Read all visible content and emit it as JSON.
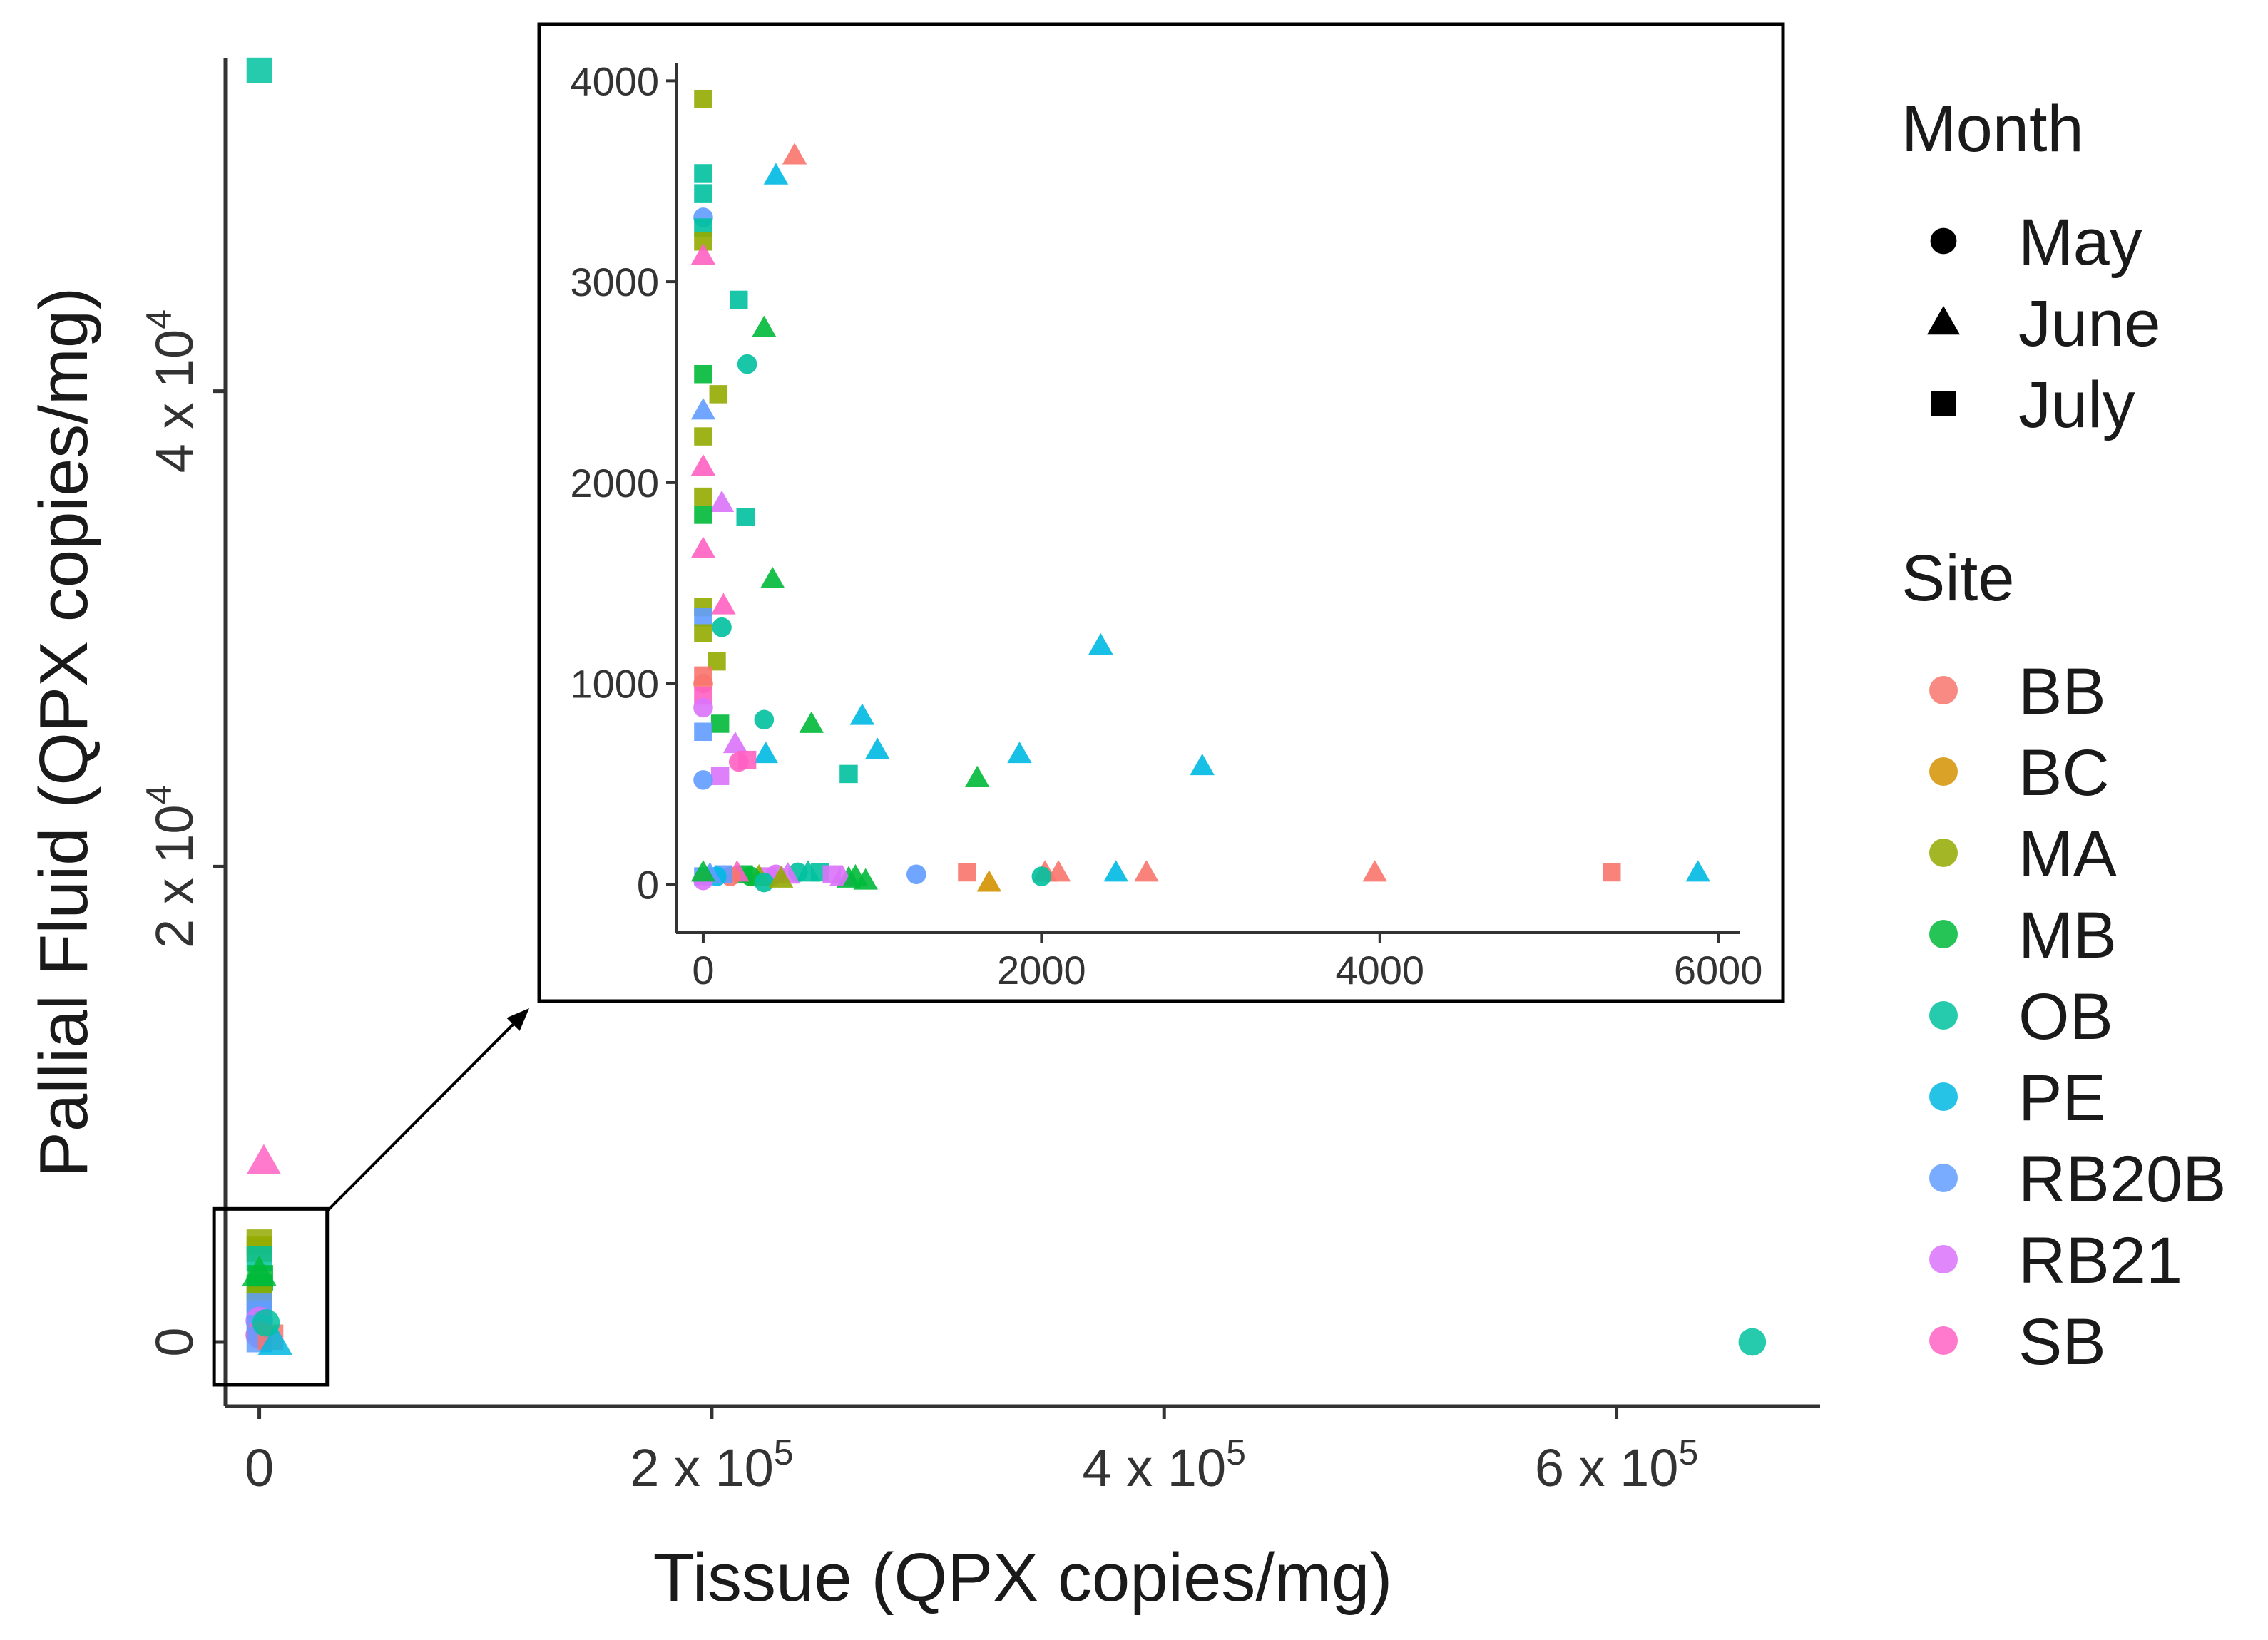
{
  "chart_data": [
    {
      "type": "scatter",
      "panel": "main",
      "xlabel": "Tissue (QPX copies/mg)",
      "ylabel": "Pallial Fluid (QPX copies/mg)",
      "xlim": [
        -15000,
        690000
      ],
      "ylim": [
        -2700,
        54000
      ],
      "x_ticks": [
        {
          "value": 0,
          "label": "0"
        },
        {
          "value": 200000,
          "label": "2 x 10",
          "sup": "5"
        },
        {
          "value": 400000,
          "label": "4 x 10",
          "sup": "5"
        },
        {
          "value": 600000,
          "label": "6 x 10",
          "sup": "5"
        }
      ],
      "y_ticks": [
        {
          "value": 0,
          "label": "0"
        },
        {
          "value": 20000,
          "label": "2 x 10",
          "sup": "4"
        },
        {
          "value": 40000,
          "label": "4 x 10",
          "sup": "4"
        }
      ],
      "points": [
        {
          "x": 0,
          "y": 53500,
          "month": "July",
          "site": "OB"
        },
        {
          "x": 2000,
          "y": 7600,
          "month": "June",
          "site": "SB"
        },
        {
          "x": 0,
          "y": 4200,
          "month": "July",
          "site": "MA"
        },
        {
          "x": 0,
          "y": 3900,
          "month": "July",
          "site": "MA"
        },
        {
          "x": 0,
          "y": 3500,
          "month": "July",
          "site": "OB"
        },
        {
          "x": 0,
          "y": 2900,
          "month": "June",
          "site": "MB"
        },
        {
          "x": 500,
          "y": 2700,
          "month": "July",
          "site": "MB"
        },
        {
          "x": 0,
          "y": 2300,
          "month": "July",
          "site": "MB"
        },
        {
          "x": 0,
          "y": 1800,
          "month": "July",
          "site": "MA"
        },
        {
          "x": 0,
          "y": 1500,
          "month": "July",
          "site": "RB20B"
        },
        {
          "x": 0,
          "y": 1200,
          "month": "July",
          "site": "RB20B"
        },
        {
          "x": 0,
          "y": 900,
          "month": "May",
          "site": "RB21"
        },
        {
          "x": 0,
          "y": 600,
          "month": "July",
          "site": "RB20B"
        },
        {
          "x": 0,
          "y": 300,
          "month": "May",
          "site": "SB"
        },
        {
          "x": 0,
          "y": 100,
          "month": "July",
          "site": "RB20B"
        },
        {
          "x": 5000,
          "y": 200,
          "month": "July",
          "site": "BB"
        },
        {
          "x": 7000,
          "y": 0,
          "month": "June",
          "site": "PE"
        },
        {
          "x": 3000,
          "y": 800,
          "month": "May",
          "site": "OB"
        },
        {
          "x": 660000,
          "y": 0,
          "month": "May",
          "site": "OB"
        }
      ],
      "zoom_box": {
        "x": [
          -20000,
          30000
        ],
        "y": [
          -1800,
          5600
        ]
      }
    },
    {
      "type": "scatter",
      "panel": "inset",
      "xlim": [
        -160,
        6130
      ],
      "ylim": [
        -240,
        4090
      ],
      "x_ticks": [
        {
          "value": 0,
          "label": "0"
        },
        {
          "value": 2000,
          "label": "2000"
        },
        {
          "value": 4000,
          "label": "4000"
        },
        {
          "value": 6000,
          "label": "6000"
        }
      ],
      "y_ticks": [
        {
          "value": 0,
          "label": "0"
        },
        {
          "value": 1000,
          "label": "1000"
        },
        {
          "value": 2000,
          "label": "2000"
        },
        {
          "value": 3000,
          "label": "3000"
        },
        {
          "value": 4000,
          "label": "4000"
        }
      ],
      "points": [
        {
          "x": 0,
          "y": 3910,
          "month": "July",
          "site": "MA"
        },
        {
          "x": 0,
          "y": 3540,
          "month": "July",
          "site": "OB"
        },
        {
          "x": 0,
          "y": 3440,
          "month": "July",
          "site": "OB"
        },
        {
          "x": 0,
          "y": 3320,
          "month": "May",
          "site": "RB20B"
        },
        {
          "x": 0,
          "y": 3270,
          "month": "July",
          "site": "OB"
        },
        {
          "x": 0,
          "y": 3200,
          "month": "July",
          "site": "MA"
        },
        {
          "x": 0,
          "y": 3130,
          "month": "June",
          "site": "SB"
        },
        {
          "x": 540,
          "y": 3630,
          "month": "June",
          "site": "BB"
        },
        {
          "x": 430,
          "y": 3530,
          "month": "June",
          "site": "PE"
        },
        {
          "x": 210,
          "y": 2910,
          "month": "July",
          "site": "OB"
        },
        {
          "x": 360,
          "y": 2770,
          "month": "June",
          "site": "MB"
        },
        {
          "x": 260,
          "y": 2590,
          "month": "May",
          "site": "OB"
        },
        {
          "x": 0,
          "y": 2540,
          "month": "July",
          "site": "MB"
        },
        {
          "x": 90,
          "y": 2440,
          "month": "July",
          "site": "MA"
        },
        {
          "x": 0,
          "y": 2360,
          "month": "June",
          "site": "RB20B"
        },
        {
          "x": 0,
          "y": 2230,
          "month": "July",
          "site": "MA"
        },
        {
          "x": 0,
          "y": 2080,
          "month": "June",
          "site": "SB"
        },
        {
          "x": 0,
          "y": 1930,
          "month": "July",
          "site": "MA"
        },
        {
          "x": 110,
          "y": 1900,
          "month": "June",
          "site": "RB21"
        },
        {
          "x": 0,
          "y": 1840,
          "month": "July",
          "site": "MB"
        },
        {
          "x": 250,
          "y": 1830,
          "month": "July",
          "site": "OB"
        },
        {
          "x": 0,
          "y": 1670,
          "month": "June",
          "site": "SB"
        },
        {
          "x": 410,
          "y": 1520,
          "month": "June",
          "site": "MB"
        },
        {
          "x": 0,
          "y": 1380,
          "month": "July",
          "site": "MA"
        },
        {
          "x": 120,
          "y": 1390,
          "month": "June",
          "site": "SB"
        },
        {
          "x": 0,
          "y": 1330,
          "month": "July",
          "site": "RB20B"
        },
        {
          "x": 110,
          "y": 1280,
          "month": "May",
          "site": "OB"
        },
        {
          "x": 0,
          "y": 1250,
          "month": "July",
          "site": "MA"
        },
        {
          "x": 2350,
          "y": 1190,
          "month": "June",
          "site": "PE"
        },
        {
          "x": 80,
          "y": 1110,
          "month": "July",
          "site": "MA"
        },
        {
          "x": 0,
          "y": 1040,
          "month": "July",
          "site": "BB"
        },
        {
          "x": 0,
          "y": 1000,
          "month": "May",
          "site": "BB"
        },
        {
          "x": 0,
          "y": 940,
          "month": "July",
          "site": "SB"
        },
        {
          "x": 0,
          "y": 880,
          "month": "May",
          "site": "RB21"
        },
        {
          "x": 940,
          "y": 840,
          "month": "June",
          "site": "PE"
        },
        {
          "x": 360,
          "y": 820,
          "month": "May",
          "site": "OB"
        },
        {
          "x": 640,
          "y": 800,
          "month": "June",
          "site": "MB"
        },
        {
          "x": 100,
          "y": 800,
          "month": "July",
          "site": "MB"
        },
        {
          "x": 0,
          "y": 760,
          "month": "July",
          "site": "RB20B"
        },
        {
          "x": 190,
          "y": 700,
          "month": "June",
          "site": "RB21"
        },
        {
          "x": 1030,
          "y": 670,
          "month": "June",
          "site": "PE"
        },
        {
          "x": 1870,
          "y": 650,
          "month": "June",
          "site": "PE"
        },
        {
          "x": 370,
          "y": 650,
          "month": "June",
          "site": "PE"
        },
        {
          "x": 260,
          "y": 620,
          "month": "July",
          "site": "SB"
        },
        {
          "x": 210,
          "y": 610,
          "month": "May",
          "site": "SB"
        },
        {
          "x": 2950,
          "y": 590,
          "month": "June",
          "site": "PE"
        },
        {
          "x": 860,
          "y": 550,
          "month": "July",
          "site": "OB"
        },
        {
          "x": 1620,
          "y": 530,
          "month": "June",
          "site": "MB"
        },
        {
          "x": 100,
          "y": 540,
          "month": "July",
          "site": "RB21"
        },
        {
          "x": 0,
          "y": 520,
          "month": "May",
          "site": "RB20B"
        },
        {
          "x": 1560,
          "y": 60,
          "month": "July",
          "site": "BB"
        },
        {
          "x": 5370,
          "y": 60,
          "month": "July",
          "site": "BB"
        },
        {
          "x": 3970,
          "y": 60,
          "month": "June",
          "site": "BB"
        },
        {
          "x": 2620,
          "y": 60,
          "month": "June",
          "site": "BB"
        },
        {
          "x": 2020,
          "y": 60,
          "month": "June",
          "site": "BB"
        },
        {
          "x": 2100,
          "y": 60,
          "month": "June",
          "site": "BB"
        },
        {
          "x": 2440,
          "y": 60,
          "month": "June",
          "site": "PE"
        },
        {
          "x": 5880,
          "y": 60,
          "month": "June",
          "site": "PE"
        },
        {
          "x": 1260,
          "y": 50,
          "month": "May",
          "site": "RB20B"
        },
        {
          "x": 2000,
          "y": 40,
          "month": "May",
          "site": "OB"
        },
        {
          "x": 1690,
          "y": 10,
          "month": "June",
          "site": "BC"
        },
        {
          "x": 960,
          "y": 20,
          "month": "June",
          "site": "MB"
        },
        {
          "x": 860,
          "y": 30,
          "month": "June",
          "site": "MB"
        },
        {
          "x": 690,
          "y": 60,
          "month": "July",
          "site": "OB"
        },
        {
          "x": 620,
          "y": 60,
          "month": "June",
          "site": "OB"
        },
        {
          "x": 560,
          "y": 60,
          "month": "May",
          "site": "OB"
        },
        {
          "x": 500,
          "y": 50,
          "month": "June",
          "site": "RB21"
        },
        {
          "x": 430,
          "y": 50,
          "month": "May",
          "site": "RB21"
        },
        {
          "x": 380,
          "y": 40,
          "month": "July",
          "site": "RB21"
        },
        {
          "x": 330,
          "y": 40,
          "month": "June",
          "site": "MA"
        },
        {
          "x": 280,
          "y": 40,
          "month": "May",
          "site": "MB"
        },
        {
          "x": 240,
          "y": 50,
          "month": "July",
          "site": "MB"
        },
        {
          "x": 200,
          "y": 60,
          "month": "June",
          "site": "SB"
        },
        {
          "x": 160,
          "y": 40,
          "month": "May",
          "site": "BB"
        },
        {
          "x": 120,
          "y": 50,
          "month": "July",
          "site": "RB20B"
        },
        {
          "x": 80,
          "y": 40,
          "month": "May",
          "site": "PE"
        },
        {
          "x": 40,
          "y": 50,
          "month": "June",
          "site": "RB20B"
        },
        {
          "x": 0,
          "y": 40,
          "month": "July",
          "site": "RB20B"
        },
        {
          "x": 0,
          "y": 20,
          "month": "May",
          "site": "RB21"
        },
        {
          "x": 0,
          "y": 60,
          "month": "June",
          "site": "MB"
        },
        {
          "x": 760,
          "y": 50,
          "month": "July",
          "site": "RB21"
        },
        {
          "x": 820,
          "y": 40,
          "month": "June",
          "site": "RB21"
        },
        {
          "x": 900,
          "y": 40,
          "month": "June",
          "site": "MB"
        },
        {
          "x": 360,
          "y": 10,
          "month": "May",
          "site": "OB"
        },
        {
          "x": 460,
          "y": 30,
          "month": "June",
          "site": "MA"
        }
      ]
    }
  ],
  "legend": {
    "month_title": "Month",
    "months": [
      {
        "label": "May",
        "shape": "circle"
      },
      {
        "label": "June",
        "shape": "triangle"
      },
      {
        "label": "July",
        "shape": "square"
      }
    ],
    "site_title": "Site",
    "sites": [
      {
        "label": "BB",
        "color": "#F8766D"
      },
      {
        "label": "BC",
        "color": "#D39200"
      },
      {
        "label": "MA",
        "color": "#93AA00"
      },
      {
        "label": "MB",
        "color": "#00BA38"
      },
      {
        "label": "OB",
        "color": "#00C19F"
      },
      {
        "label": "PE",
        "color": "#00B9E3"
      },
      {
        "label": "RB20B",
        "color": "#619CFF"
      },
      {
        "label": "RB21",
        "color": "#DB72FB"
      },
      {
        "label": "SB",
        "color": "#FF61C3"
      }
    ]
  }
}
